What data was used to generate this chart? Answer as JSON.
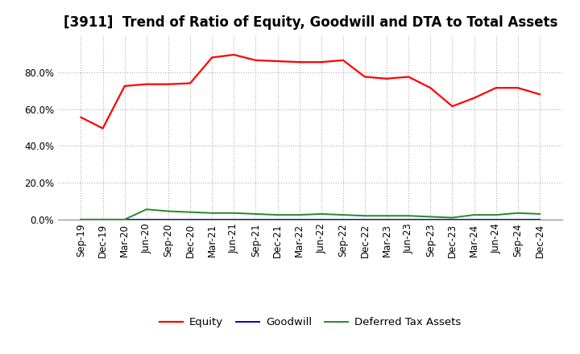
{
  "title": "[3911]  Trend of Ratio of Equity, Goodwill and DTA to Total Assets",
  "labels": [
    "Sep-19",
    "Dec-19",
    "Mar-20",
    "Jun-20",
    "Sep-20",
    "Dec-20",
    "Mar-21",
    "Jun-21",
    "Sep-21",
    "Dec-21",
    "Mar-22",
    "Jun-22",
    "Sep-22",
    "Dec-22",
    "Mar-23",
    "Jun-23",
    "Sep-23",
    "Dec-23",
    "Mar-24",
    "Jun-24",
    "Sep-24",
    "Dec-24"
  ],
  "equity": [
    55.5,
    49.5,
    72.5,
    73.5,
    73.5,
    74.0,
    88.0,
    89.5,
    86.5,
    86.0,
    85.5,
    85.5,
    86.5,
    77.5,
    76.5,
    77.5,
    71.5,
    61.5,
    66.0,
    71.5,
    71.5,
    68.0
  ],
  "goodwill": [
    0.0,
    0.0,
    0.0,
    0.0,
    0.0,
    0.0,
    0.0,
    0.0,
    0.0,
    0.0,
    0.0,
    0.0,
    0.0,
    0.0,
    0.0,
    0.0,
    0.0,
    0.0,
    0.0,
    0.0,
    0.0,
    0.0
  ],
  "dta": [
    0.0,
    0.0,
    0.0,
    5.5,
    4.5,
    4.0,
    3.5,
    3.5,
    3.0,
    2.5,
    2.5,
    3.0,
    2.5,
    2.0,
    2.0,
    2.0,
    1.5,
    1.0,
    2.5,
    2.5,
    3.5,
    3.0
  ],
  "equity_color": "#ff0000",
  "goodwill_color": "#0000cd",
  "dta_color": "#228b22",
  "bg_color": "#ffffff",
  "grid_color": "#b0b0b0",
  "ylim": [
    0,
    100
  ],
  "yticks": [
    0,
    20,
    40,
    60,
    80
  ],
  "legend_labels": [
    "Equity",
    "Goodwill",
    "Deferred Tax Assets"
  ],
  "title_fontsize": 12,
  "tick_fontsize": 8.5,
  "legend_fontsize": 9.5
}
